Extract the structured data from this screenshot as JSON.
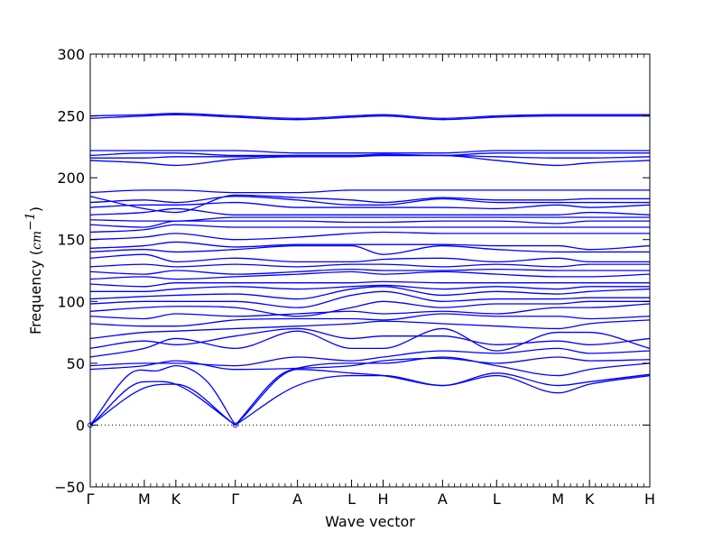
{
  "chart_data": {
    "type": "line",
    "title": "",
    "xlabel": "Wave vector",
    "ylabel_prefix": "Frequency (",
    "ylabel_unit": "cm",
    "ylabel_exp": "−1",
    "ylabel_suffix": ")",
    "ylim": [
      -50,
      300
    ],
    "y_ticks": [
      -50,
      0,
      50,
      100,
      150,
      200,
      250,
      300
    ],
    "y_tick_labels": [
      "−50",
      "0",
      "50",
      "100",
      "150",
      "200",
      "250",
      "300"
    ],
    "x_range": [
      0,
      12.42
    ],
    "x_ticks": [
      {
        "label": "Γ",
        "x": 0
      },
      {
        "label": "M",
        "x": 1.2
      },
      {
        "label": "K",
        "x": 1.9
      },
      {
        "label": "Γ",
        "x": 3.22
      },
      {
        "label": "A",
        "x": 4.6
      },
      {
        "label": "L",
        "x": 5.8
      },
      {
        "label": "H",
        "x": 6.5
      },
      {
        "label": "A",
        "x": 7.82
      },
      {
        "label": "L",
        "x": 9.02
      },
      {
        "label": "M",
        "x": 10.38
      },
      {
        "label": "K",
        "x": 11.08
      },
      {
        "label": "H",
        "x": 12.42
      }
    ],
    "series_color": "#0000ff",
    "zero_line": true,
    "grid": false,
    "legend": "none",
    "series": [
      {
        "x": [
          0,
          1.2,
          1.9,
          3.22
        ],
        "y": [
          0,
          30,
          33,
          0
        ]
      },
      {
        "x": [
          0,
          1.2,
          1.9,
          3.22
        ],
        "y": [
          0,
          35,
          33,
          0
        ]
      },
      {
        "x": [
          0,
          0.9,
          1.5,
          1.9,
          2.6,
          3.22
        ],
        "y": [
          0,
          42,
          44,
          48,
          35,
          0
        ]
      },
      {
        "x": [
          3.22,
          4.6,
          5.8,
          6.5,
          7.82,
          9.02,
          10.38,
          11.08,
          12.42
        ],
        "y": [
          0,
          32,
          40,
          40,
          32,
          40,
          26,
          33,
          40
        ]
      },
      {
        "x": [
          3.22,
          4.6,
          5.8,
          6.5,
          7.82,
          9.02,
          10.38,
          11.08,
          12.42
        ],
        "y": [
          0,
          45,
          42,
          40,
          32,
          42,
          32,
          35,
          41
        ]
      },
      {
        "x": [
          3.22,
          4.2,
          4.6,
          5.8,
          6.5,
          7.82,
          9.02,
          10.38,
          11.08,
          12.42
        ],
        "y": [
          0,
          40,
          46,
          50,
          50,
          55,
          48,
          40,
          45,
          50
        ]
      },
      {
        "x": [
          0,
          1.2,
          1.9,
          3.22,
          4.6,
          5.8,
          6.5,
          7.82,
          9.02,
          10.38,
          11.08,
          12.42
        ],
        "y": [
          45,
          48,
          52,
          45,
          46,
          48,
          52,
          54,
          50,
          55,
          52,
          53
        ]
      },
      {
        "x": [
          0,
          1.2,
          1.9,
          3.22,
          4.6,
          5.8,
          6.5,
          7.82,
          9.02,
          10.38,
          11.08,
          12.42
        ],
        "y": [
          48,
          50,
          50,
          48,
          55,
          52,
          55,
          60,
          58,
          62,
          58,
          60
        ]
      },
      {
        "x": [
          0,
          1.2,
          1.9,
          3.22,
          4.6,
          5.8,
          6.5,
          7.82,
          9.02,
          10.38,
          11.08,
          12.42
        ],
        "y": [
          55,
          62,
          70,
          62,
          76,
          62,
          62,
          78,
          60,
          75,
          75,
          62
        ]
      },
      {
        "x": [
          0,
          1.2,
          1.9,
          3.22,
          4.6,
          5.8,
          6.5,
          7.82,
          9.02,
          10.38,
          11.08,
          12.42
        ],
        "y": [
          62,
          68,
          65,
          72,
          78,
          70,
          72,
          72,
          65,
          68,
          65,
          70
        ]
      },
      {
        "x": [
          0,
          1.2,
          1.9,
          3.22,
          4.6,
          5.8,
          6.5,
          7.82,
          9.02,
          10.38,
          11.08,
          12.42
        ],
        "y": [
          70,
          75,
          76,
          78,
          80,
          82,
          84,
          82,
          80,
          78,
          82,
          85
        ]
      },
      {
        "x": [
          0,
          1.2,
          1.9,
          3.22,
          4.6,
          5.8,
          6.5,
          7.82,
          9.02,
          10.38,
          11.08,
          12.42
        ],
        "y": [
          82,
          80,
          80,
          85,
          86,
          86,
          85,
          90,
          88,
          88,
          86,
          88
        ]
      },
      {
        "x": [
          0,
          1.2,
          1.9,
          3.22,
          4.6,
          5.8,
          6.5,
          7.82,
          9.02,
          10.38,
          11.08,
          12.42
        ],
        "y": [
          88,
          86,
          90,
          88,
          90,
          92,
          90,
          92,
          90,
          95,
          95,
          98
        ]
      },
      {
        "x": [
          0,
          1.2,
          1.9,
          3.22,
          4.6,
          5.8,
          6.5,
          7.82,
          9.02,
          10.38,
          11.08,
          12.42
        ],
        "y": [
          92,
          95,
          96,
          95,
          88,
          95,
          100,
          95,
          98,
          98,
          100,
          100
        ]
      },
      {
        "x": [
          0,
          1.2,
          1.9,
          3.22,
          4.6,
          5.8,
          6.5,
          7.82,
          9.02,
          10.38,
          11.08,
          12.42
        ],
        "y": [
          98,
          100,
          100,
          100,
          95,
          105,
          108,
          100,
          102,
          102,
          103,
          103
        ]
      },
      {
        "x": [
          0,
          1.2,
          1.9,
          3.22,
          4.6,
          5.8,
          6.5,
          7.82,
          9.02,
          10.38,
          11.08,
          12.42
        ],
        "y": [
          102,
          104,
          105,
          106,
          102,
          110,
          112,
          105,
          108,
          106,
          108,
          110
        ]
      },
      {
        "x": [
          0,
          1.2,
          1.9,
          3.22,
          4.6,
          5.8,
          6.5,
          7.82,
          9.02,
          10.38,
          11.08,
          12.42
        ],
        "y": [
          108,
          108,
          110,
          112,
          110,
          112,
          113,
          110,
          112,
          110,
          112,
          112
        ]
      },
      {
        "x": [
          0,
          1.2,
          1.9,
          3.22,
          4.6,
          5.8,
          6.5,
          7.82,
          9.02,
          10.38,
          11.08,
          12.42
        ],
        "y": [
          114,
          112,
          115,
          115,
          115,
          115,
          116,
          115,
          115,
          115,
          115,
          115
        ]
      },
      {
        "x": [
          0,
          1.2,
          1.9,
          3.22,
          4.6,
          5.8,
          6.5,
          7.82,
          9.02,
          10.38,
          11.08,
          12.42
        ],
        "y": [
          118,
          120,
          118,
          120,
          122,
          124,
          122,
          124,
          122,
          120,
          120,
          122
        ]
      },
      {
        "x": [
          0,
          1.2,
          1.9,
          3.22,
          4.6,
          5.8,
          6.5,
          7.82,
          9.02,
          10.38,
          11.08,
          12.42
        ],
        "y": [
          124,
          122,
          125,
          122,
          124,
          126,
          125,
          125,
          126,
          125,
          125,
          125
        ]
      },
      {
        "x": [
          0,
          1.2,
          1.9,
          3.22,
          4.6,
          5.8,
          6.5,
          7.82,
          9.02,
          10.38,
          11.08,
          12.42
        ],
        "y": [
          128,
          130,
          128,
          130,
          128,
          130,
          130,
          128,
          130,
          128,
          130,
          130
        ]
      },
      {
        "x": [
          0,
          1.2,
          1.9,
          3.22,
          4.6,
          5.8,
          6.5,
          7.82,
          9.02,
          10.38,
          11.08,
          12.42
        ],
        "y": [
          135,
          138,
          132,
          135,
          132,
          132,
          134,
          135,
          132,
          135,
          132,
          132
        ]
      },
      {
        "x": [
          0,
          1.2,
          1.9,
          3.22,
          4.6,
          5.8,
          6.5,
          7.82,
          9.02,
          10.38,
          11.08,
          12.42
        ],
        "y": [
          140,
          142,
          140,
          142,
          145,
          145,
          138,
          145,
          142,
          140,
          140,
          140
        ]
      },
      {
        "x": [
          0,
          1.2,
          1.9,
          3.22,
          4.6,
          5.8,
          6.5,
          7.82,
          9.02,
          10.38,
          11.08,
          12.42
        ],
        "y": [
          143,
          145,
          148,
          144,
          146,
          146,
          146,
          146,
          145,
          145,
          142,
          145
        ]
      },
      {
        "x": [
          0,
          1.2,
          1.9,
          3.22,
          4.6,
          5.8,
          6.5,
          7.82,
          9.02,
          10.38,
          11.08,
          12.42
        ],
        "y": [
          150,
          152,
          155,
          150,
          152,
          155,
          156,
          155,
          155,
          155,
          155,
          155
        ]
      },
      {
        "x": [
          0,
          1.2,
          1.9,
          3.22,
          4.6,
          5.8,
          6.5,
          7.82,
          9.02,
          10.38,
          11.08,
          12.42
        ],
        "y": [
          156,
          158,
          162,
          160,
          160,
          160,
          160,
          160,
          160,
          160,
          160,
          160
        ]
      },
      {
        "x": [
          0,
          1.2,
          1.9,
          3.22,
          4.6,
          5.8,
          6.5,
          7.82,
          9.02,
          10.38,
          11.08,
          12.42
        ],
        "y": [
          162,
          160,
          165,
          165,
          165,
          164,
          164,
          165,
          165,
          163,
          165,
          165
        ]
      },
      {
        "x": [
          0,
          1.2,
          1.9,
          3.22,
          4.6,
          5.8,
          6.5,
          7.82,
          9.02,
          10.38,
          11.08,
          12.42
        ],
        "y": [
          166,
          165,
          165,
          168,
          168,
          168,
          168,
          168,
          168,
          168,
          168,
          168
        ]
      },
      {
        "x": [
          0,
          1.2,
          1.9,
          3.22,
          4.6,
          5.8,
          6.5,
          7.82,
          9.02,
          10.38,
          11.08,
          12.42
        ],
        "y": [
          170,
          172,
          175,
          170,
          170,
          170,
          170,
          170,
          170,
          170,
          172,
          170
        ]
      },
      {
        "x": [
          0,
          1.2,
          1.9,
          3.22,
          4.6,
          5.8,
          6.5,
          7.82,
          9.02,
          10.38,
          11.08,
          12.42
        ],
        "y": [
          176,
          178,
          178,
          180,
          176,
          176,
          176,
          176,
          175,
          178,
          176,
          178
        ]
      },
      {
        "x": [
          0,
          1.2,
          1.9,
          3.22,
          4.6,
          5.8,
          6.5,
          7.82,
          9.02,
          10.38,
          11.08,
          12.42
        ],
        "y": [
          180,
          182,
          180,
          185,
          182,
          178,
          178,
          183,
          180,
          180,
          180,
          180
        ]
      },
      {
        "x": [
          0,
          1.2,
          1.9,
          3.22,
          4.6,
          5.8,
          6.5,
          7.82,
          9.02,
          10.38,
          11.08,
          12.42
        ],
        "y": [
          185,
          175,
          172,
          186,
          184,
          182,
          180,
          184,
          182,
          182,
          183,
          183
        ]
      },
      {
        "x": [
          0,
          1.2,
          1.9,
          3.22,
          4.6,
          5.8,
          6.5,
          7.82,
          9.02,
          10.38,
          11.08,
          12.42
        ],
        "y": [
          188,
          190,
          190,
          188,
          188,
          190,
          190,
          190,
          190,
          190,
          190,
          190
        ]
      },
      {
        "x": [
          0,
          1.2,
          1.9,
          3.22,
          4.6,
          5.8,
          6.5,
          7.82,
          9.02,
          10.38,
          11.08,
          12.42
        ],
        "y": [
          214,
          212,
          210,
          215,
          217,
          217,
          218,
          218,
          214,
          210,
          212,
          214
        ]
      },
      {
        "x": [
          0,
          1.2,
          1.9,
          3.22,
          4.6,
          5.8,
          6.5,
          7.82,
          9.02,
          10.38,
          11.08,
          12.42
        ],
        "y": [
          216,
          216,
          217,
          217,
          218,
          218,
          218,
          218,
          217,
          216,
          216,
          217
        ]
      },
      {
        "x": [
          0,
          1.2,
          1.9,
          3.22,
          4.6,
          5.8,
          6.5,
          7.82,
          9.02,
          10.38,
          11.08,
          12.42
        ],
        "y": [
          218,
          220,
          220,
          218,
          218,
          218,
          219,
          218,
          220,
          220,
          220,
          220
        ]
      },
      {
        "x": [
          0,
          1.2,
          1.9,
          3.22,
          4.6,
          5.8,
          6.5,
          7.82,
          9.02,
          10.38,
          11.08,
          12.42
        ],
        "y": [
          222,
          222,
          222,
          222,
          220,
          220,
          220,
          220,
          222,
          222,
          222,
          222
        ]
      },
      {
        "x": [
          0,
          1.2,
          1.9,
          3.22,
          4.6,
          5.8,
          6.5,
          7.82,
          9.02,
          10.38,
          11.08,
          12.42
        ],
        "y": [
          248,
          250,
          251,
          249,
          247,
          249,
          250,
          247,
          249,
          250,
          250,
          250
        ]
      },
      {
        "x": [
          0,
          1.2,
          1.9,
          3.22,
          4.6,
          5.8,
          6.5,
          7.82,
          9.02,
          10.38,
          11.08,
          12.42
        ],
        "y": [
          250,
          251,
          252,
          250,
          248,
          250,
          251,
          248,
          250,
          251,
          251,
          251
        ]
      }
    ]
  }
}
